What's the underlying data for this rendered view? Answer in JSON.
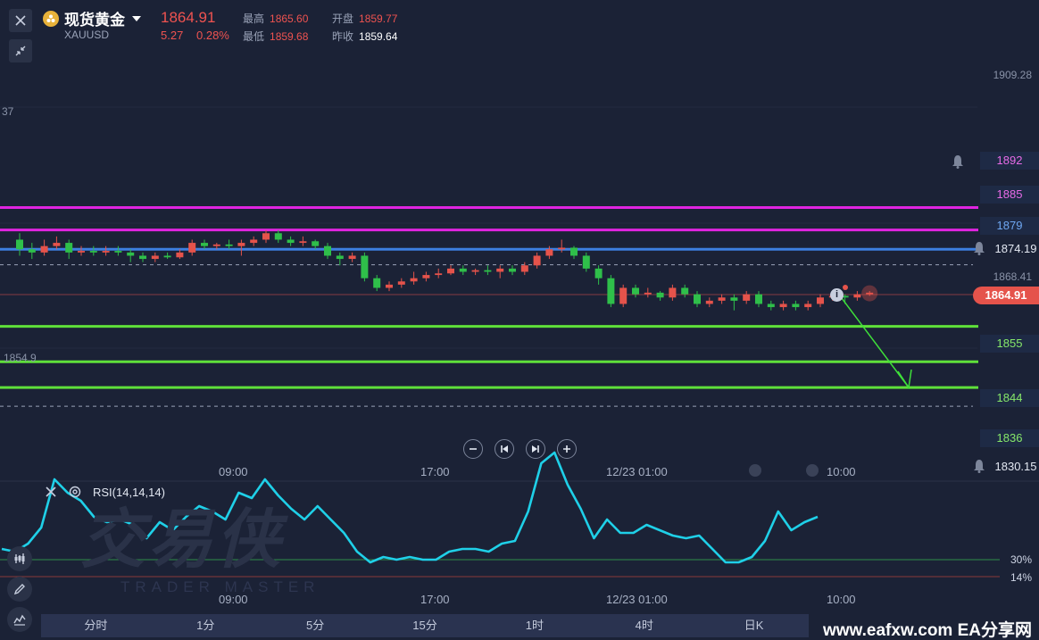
{
  "header": {
    "symbol_name": "现货黄金",
    "symbol_code": "XAUUSD",
    "last_price": "1864.91",
    "change": "5.27",
    "change_pct": "0.28%",
    "high_label": "最高",
    "high": "1865.60",
    "open_label": "开盘",
    "open": "1859.77",
    "low_label": "最低",
    "low": "1859.68",
    "prev_close_label": "昨收",
    "prev_close": "1859.64"
  },
  "chart_data": [
    {
      "type": "candlestick",
      "title": "",
      "ylim": [
        1830.15,
        1909.28
      ],
      "y_axis_labels": [
        "1909.28",
        "1874.19",
        "1868.41",
        "1830.15"
      ],
      "edge_labels": [
        "37",
        "1854.9"
      ],
      "current_price_label": "1864.91",
      "x_tick_labels": [
        "09:00",
        "17:00",
        "12/23 01:00",
        "10:00"
      ],
      "horizontal_levels": [
        {
          "value": 1892,
          "label": "1892",
          "color": "#e024e0"
        },
        {
          "value": 1885,
          "label": "1885",
          "color": "#e024e0"
        },
        {
          "value": 1879,
          "label": "1879",
          "color": "#3d7fe0"
        },
        {
          "value": 1855,
          "label": "1855",
          "color": "#5fe03a"
        },
        {
          "value": 1844,
          "label": "1844",
          "color": "#5fe03a"
        },
        {
          "value": 1836,
          "label": "1836",
          "color": "#5fe03a"
        }
      ],
      "dashed_levels": [
        1874.19,
        1830.15
      ],
      "arrow": {
        "from": 1864.9,
        "to": 1836,
        "color": "#3fe03a"
      },
      "candles": [
        [
          1882,
          1879,
          1884,
          1877
        ],
        [
          1879,
          1878,
          1881,
          1876
        ],
        [
          1878,
          1880,
          1882,
          1877
        ],
        [
          1880,
          1881,
          1883,
          1879
        ],
        [
          1881,
          1878,
          1882,
          1876
        ],
        [
          1878,
          1878.5,
          1880,
          1877
        ],
        [
          1878.5,
          1878,
          1880,
          1877
        ],
        [
          1878,
          1878.5,
          1880,
          1877
        ],
        [
          1878.5,
          1878,
          1880,
          1877
        ],
        [
          1878,
          1877,
          1879,
          1875
        ],
        [
          1877,
          1876,
          1878,
          1875
        ],
        [
          1876,
          1877,
          1878,
          1875
        ],
        [
          1877,
          1876.5,
          1878,
          1876
        ],
        [
          1876.5,
          1878,
          1879,
          1876
        ],
        [
          1878,
          1881,
          1882,
          1877
        ],
        [
          1881,
          1880,
          1882,
          1879
        ],
        [
          1880,
          1880.5,
          1881,
          1879
        ],
        [
          1880.5,
          1880,
          1882,
          1879
        ],
        [
          1880,
          1881,
          1882,
          1877
        ],
        [
          1881,
          1882,
          1883,
          1880
        ],
        [
          1882,
          1884,
          1885,
          1881
        ],
        [
          1884,
          1882,
          1885,
          1881
        ],
        [
          1882,
          1881,
          1883,
          1880
        ],
        [
          1881,
          1881.5,
          1883,
          1880
        ],
        [
          1881.5,
          1880,
          1882,
          1879
        ],
        [
          1880,
          1877,
          1881,
          1876
        ],
        [
          1877,
          1876,
          1878,
          1874
        ],
        [
          1876,
          1877,
          1878,
          1875
        ],
        [
          1877,
          1870,
          1878,
          1869
        ],
        [
          1870,
          1867,
          1871,
          1866
        ],
        [
          1867,
          1868,
          1869,
          1866
        ],
        [
          1868,
          1869,
          1870,
          1867
        ],
        [
          1869,
          1870,
          1872,
          1868
        ],
        [
          1870,
          1871,
          1872,
          1869
        ],
        [
          1871,
          1871.5,
          1873,
          1870
        ],
        [
          1871.5,
          1873,
          1874,
          1871
        ],
        [
          1873,
          1872,
          1874,
          1871
        ],
        [
          1872,
          1872.5,
          1873,
          1871
        ],
        [
          1872.5,
          1872,
          1874,
          1871
        ],
        [
          1872,
          1873,
          1874,
          1870
        ],
        [
          1873,
          1872,
          1874,
          1871
        ],
        [
          1872,
          1874,
          1875,
          1871
        ],
        [
          1874,
          1877,
          1878,
          1873
        ],
        [
          1877,
          1879,
          1880,
          1876
        ],
        [
          1879,
          1879.5,
          1882,
          1878
        ],
        [
          1879.5,
          1877,
          1880,
          1876
        ],
        [
          1877,
          1873,
          1878,
          1872
        ],
        [
          1873,
          1870,
          1874,
          1868
        ],
        [
          1870,
          1862,
          1871,
          1861
        ],
        [
          1862,
          1867,
          1868,
          1861
        ],
        [
          1867,
          1865,
          1868,
          1864
        ],
        [
          1865,
          1865.5,
          1867,
          1864
        ],
        [
          1865.5,
          1864,
          1866,
          1863
        ],
        [
          1864,
          1867,
          1868,
          1863
        ],
        [
          1867,
          1865,
          1868,
          1864
        ],
        [
          1865,
          1862,
          1866,
          1861
        ],
        [
          1862,
          1863,
          1864,
          1861
        ],
        [
          1863,
          1864,
          1865,
          1862
        ],
        [
          1864,
          1863,
          1865,
          1860
        ],
        [
          1863,
          1865,
          1866,
          1862
        ],
        [
          1865,
          1862,
          1866,
          1861
        ],
        [
          1862,
          1861,
          1863,
          1860
        ],
        [
          1861,
          1862,
          1863,
          1860
        ],
        [
          1862,
          1861,
          1863,
          1860
        ],
        [
          1861,
          1862,
          1863,
          1860
        ],
        [
          1862,
          1864,
          1865,
          1861
        ],
        [
          1864,
          1864.5,
          1866,
          1863
        ],
        [
          1864.5,
          1864,
          1865,
          1862
        ],
        [
          1864,
          1865,
          1866,
          1863
        ],
        [
          1865,
          1865.5,
          1866,
          1864.5
        ]
      ]
    },
    {
      "type": "line",
      "title": "RSI(14,14,14)",
      "ylim": [
        10,
        90
      ],
      "y_axis_labels": [
        "30%",
        "14%"
      ],
      "reference_lines": [
        30,
        14
      ],
      "x_tick_labels": [
        "09:00",
        "17:00",
        "12/23 01:00",
        "10:00"
      ],
      "series": [
        {
          "color": "#1fd0e8",
          "values": [
            34,
            33,
            36,
            42,
            60,
            55,
            52,
            46,
            44,
            45,
            43,
            38,
            44,
            41,
            46,
            50,
            48,
            45,
            55,
            53,
            60,
            54,
            49,
            45,
            50,
            45,
            40,
            33,
            29,
            31,
            30,
            31,
            30,
            30,
            33,
            34,
            34,
            33,
            36,
            37,
            48,
            66,
            70,
            58,
            49,
            38,
            45,
            40,
            40,
            43,
            41,
            39,
            38,
            39,
            34,
            29,
            29,
            31,
            37,
            48,
            41,
            44,
            46
          ]
        }
      ]
    }
  ],
  "controls": {
    "rsi_close_icon": "close-icon",
    "rsi_settings_icon": "gear-icon"
  },
  "timeframes": [
    "分时",
    "1分",
    "5分",
    "15分",
    "1时",
    "4时",
    "日K"
  ],
  "watermark": {
    "cn": "交易侠",
    "en": "TRADER MASTER"
  },
  "site_brand": "www.eafxw.com  EA分享网"
}
